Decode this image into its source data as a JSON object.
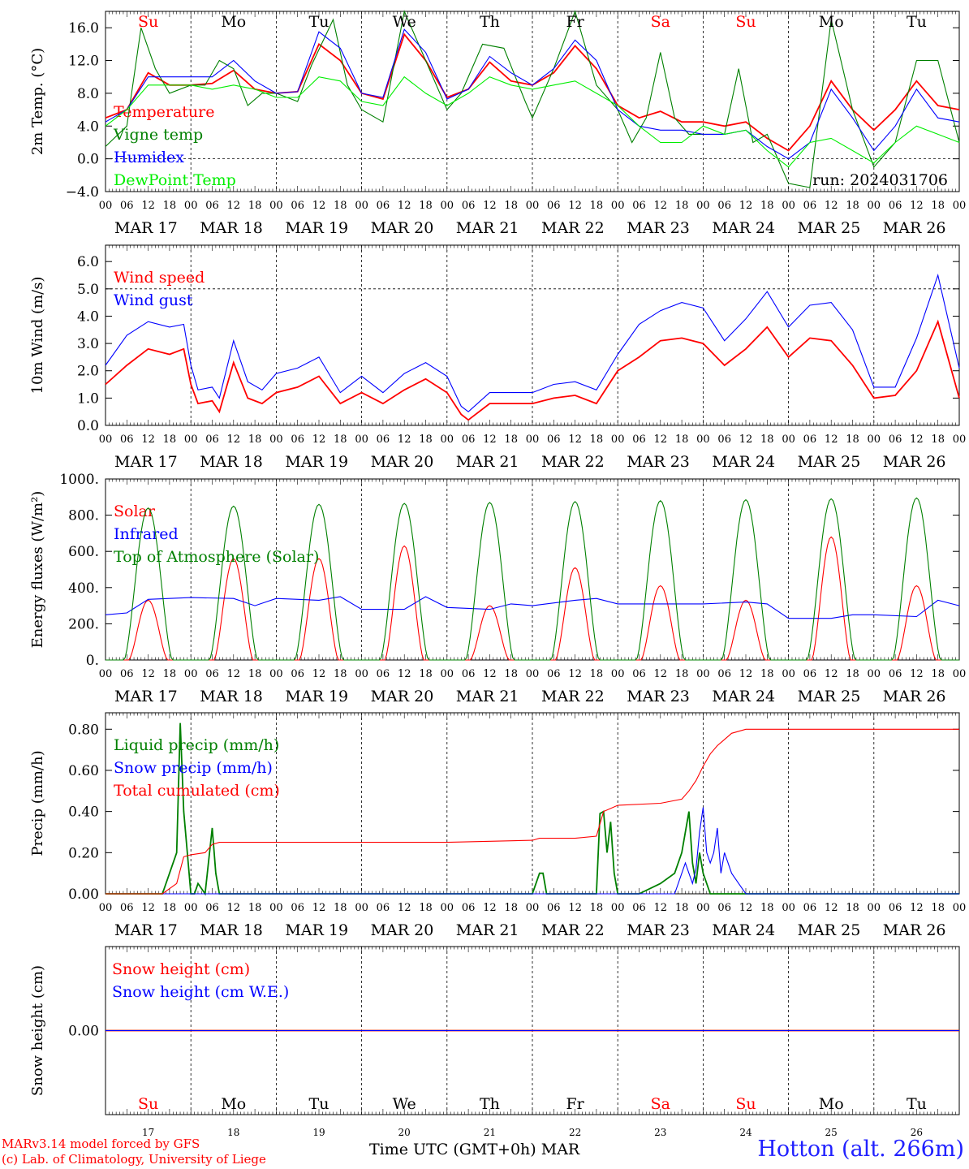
{
  "page": {
    "credit_line1": "MARv3.14 model forced by GFS",
    "credit_line2": "(c) Lab. of Climatology, University of Liege",
    "x_axis_title": "Time UTC (GMT+0h)",
    "x_axis_month": "MAR",
    "station": "Hotton (alt. 266m)",
    "run_label": "run: 2024031706"
  },
  "time_axis": {
    "hour_ticks": [
      "00",
      "06",
      "12",
      "18"
    ],
    "end_tick": "00",
    "date_labels": [
      "MAR 17",
      "MAR 18",
      "MAR 19",
      "MAR 20",
      "MAR 21",
      "MAR 22",
      "MAR 23",
      "MAR 24",
      "MAR 25",
      "MAR 26"
    ],
    "day_names": [
      "Su",
      "Mo",
      "Tu",
      "We",
      "Th",
      "Fr",
      "Sa",
      "Su",
      "Mo",
      "Tu"
    ],
    "day_name_colors": [
      "#ff0000",
      "#000000",
      "#000000",
      "#000000",
      "#000000",
      "#000000",
      "#ff0000",
      "#ff0000",
      "#000000",
      "#000000"
    ],
    "bottom_day_numbers": [
      "17",
      "18",
      "19",
      "20",
      "21",
      "22",
      "23",
      "24",
      "25",
      "26"
    ]
  },
  "chart_data": [
    {
      "type": "line",
      "ylabel": "2m Temp. (°C)",
      "ylim": [
        -4,
        18
      ],
      "yticks": [
        -4,
        0,
        4,
        8,
        12,
        16
      ],
      "ytick_labels": [
        "−4.0",
        "0.0",
        "4.0",
        "8.0",
        "12.0",
        "16.0"
      ],
      "hline": 0,
      "x_unit": "hours since MAR 17 00 UTC",
      "series": [
        {
          "name": "Temperature",
          "color": "#ff0000",
          "x": [
            0,
            6,
            12,
            18,
            24,
            30,
            36,
            42,
            48,
            54,
            60,
            66,
            72,
            78,
            84,
            90,
            96,
            102,
            108,
            114,
            120,
            126,
            132,
            138,
            144,
            150,
            156,
            162,
            168,
            174,
            180,
            186,
            192,
            198,
            204,
            210,
            216,
            222,
            228,
            234,
            240
          ],
          "y": [
            5,
            6,
            10.5,
            9,
            9,
            9.2,
            10.8,
            8.5,
            8,
            8.2,
            14,
            12,
            8,
            7.3,
            15.2,
            12,
            7.5,
            8.5,
            11.8,
            9.5,
            9,
            10.5,
            13.8,
            11,
            6.5,
            5,
            5.8,
            4.5,
            4.5,
            4,
            4.5,
            2.5,
            1,
            4,
            9.5,
            6,
            3.5,
            6,
            9.5,
            6.5,
            6
          ]
        },
        {
          "name": "Vigne temp",
          "color": "#008000",
          "x": [
            0,
            6,
            10,
            14,
            18,
            24,
            28,
            32,
            36,
            40,
            44,
            48,
            54,
            58,
            64,
            68,
            72,
            78,
            84,
            90,
            96,
            100,
            106,
            112,
            118,
            120,
            126,
            132,
            138,
            144,
            148,
            152,
            156,
            160,
            164,
            168,
            174,
            178,
            182,
            186,
            192,
            198,
            204,
            210,
            216,
            222,
            228,
            234,
            240
          ],
          "y": [
            1.5,
            4,
            16,
            11,
            8,
            9,
            9,
            12,
            11,
            6.5,
            8,
            8,
            7,
            11.5,
            17,
            9,
            6,
            4.5,
            18,
            12,
            6,
            8,
            14,
            13.5,
            7,
            5,
            11,
            18,
            9,
            6,
            2,
            5,
            13,
            5,
            3,
            3,
            3,
            11,
            2,
            3,
            -3,
            -3.5,
            17,
            6,
            -1,
            2,
            12,
            12,
            2
          ]
        },
        {
          "name": "Humidex",
          "color": "#0000ff",
          "x": [
            0,
            6,
            12,
            18,
            24,
            30,
            36,
            42,
            48,
            54,
            60,
            66,
            72,
            78,
            84,
            90,
            96,
            102,
            108,
            114,
            120,
            126,
            132,
            138,
            144,
            150,
            156,
            162,
            168,
            174,
            180,
            186,
            192,
            198,
            204,
            210,
            216,
            222,
            228,
            234,
            240
          ],
          "y": [
            4.5,
            6,
            10,
            10,
            10,
            10,
            12,
            9.5,
            8,
            8.2,
            15.5,
            13.5,
            8,
            7.5,
            15.8,
            13,
            7.3,
            8.5,
            12.5,
            10.5,
            9,
            11,
            14.5,
            12,
            6,
            4,
            3.5,
            3.5,
            3,
            3,
            3.5,
            1.5,
            0,
            2,
            8.5,
            5,
            1,
            4,
            8.5,
            5,
            4.5
          ]
        },
        {
          "name": "DewPoint Temp",
          "color": "#00ee00",
          "x": [
            0,
            6,
            12,
            18,
            24,
            30,
            36,
            42,
            48,
            54,
            60,
            66,
            72,
            78,
            84,
            90,
            96,
            102,
            108,
            114,
            120,
            126,
            132,
            138,
            144,
            150,
            156,
            162,
            168,
            174,
            180,
            186,
            192,
            198,
            204,
            210,
            216,
            222,
            228,
            234,
            240
          ],
          "y": [
            4,
            6,
            9,
            9,
            9,
            8.5,
            9,
            8.5,
            7.5,
            7.5,
            10,
            9.5,
            7,
            6.5,
            10,
            8,
            6.5,
            8,
            10,
            9,
            8.5,
            9,
            9.5,
            8,
            6.5,
            4,
            2,
            2,
            4,
            3,
            3.5,
            1,
            -1,
            2,
            2.5,
            1,
            -0.5,
            2,
            4,
            3,
            2
          ]
        }
      ]
    },
    {
      "type": "line",
      "ylabel": "10m Wind (m/s)",
      "ylim": [
        0,
        6.6
      ],
      "yticks": [
        0,
        1,
        2,
        3,
        4,
        5,
        6
      ],
      "ytick_labels": [
        "0.0",
        "1.0",
        "2.0",
        "3.0",
        "4.0",
        "5.0",
        "6.0"
      ],
      "hline": 5,
      "x_unit": "hours since MAR 17 00 UTC",
      "series": [
        {
          "name": "Wind speed",
          "color": "#ff0000",
          "x": [
            0,
            6,
            12,
            18,
            22,
            24,
            26,
            30,
            32,
            36,
            40,
            44,
            48,
            54,
            60,
            66,
            72,
            78,
            84,
            90,
            96,
            100,
            102,
            108,
            114,
            120,
            126,
            132,
            138,
            144,
            150,
            156,
            162,
            168,
            174,
            180,
            186,
            192,
            198,
            204,
            210,
            216,
            222,
            228,
            234,
            240
          ],
          "y": [
            1.5,
            2.2,
            2.8,
            2.6,
            2.8,
            1.5,
            0.8,
            0.9,
            0.5,
            2.3,
            1,
            0.8,
            1.2,
            1.4,
            1.8,
            0.8,
            1.2,
            0.8,
            1.3,
            1.7,
            1.2,
            0.4,
            0.2,
            0.8,
            0.8,
            0.8,
            1,
            1.1,
            0.8,
            2,
            2.5,
            3.1,
            3.2,
            3,
            2.2,
            2.8,
            3.6,
            2.5,
            3.2,
            3.1,
            2.2,
            1,
            1.1,
            2,
            3.8,
            1
          ]
        },
        {
          "name": "Wind gust",
          "color": "#0000ff",
          "x": [
            0,
            6,
            12,
            18,
            22,
            24,
            26,
            30,
            32,
            36,
            40,
            44,
            48,
            54,
            60,
            66,
            72,
            78,
            84,
            90,
            96,
            100,
            102,
            108,
            114,
            120,
            126,
            132,
            138,
            144,
            150,
            156,
            162,
            168,
            174,
            180,
            186,
            192,
            198,
            204,
            210,
            216,
            222,
            228,
            234,
            240
          ],
          "y": [
            2.2,
            3.3,
            3.8,
            3.6,
            3.7,
            2.2,
            1.3,
            1.4,
            1,
            3.1,
            1.6,
            1.3,
            1.9,
            2.1,
            2.5,
            1.2,
            1.8,
            1.2,
            1.9,
            2.3,
            1.8,
            0.7,
            0.5,
            1.2,
            1.2,
            1.2,
            1.5,
            1.6,
            1.3,
            2.6,
            3.7,
            4.2,
            4.5,
            4.3,
            3.1,
            3.9,
            4.9,
            3.6,
            4.4,
            4.5,
            3.5,
            1.4,
            1.4,
            3.2,
            5.5,
            2.1
          ]
        }
      ]
    },
    {
      "type": "line",
      "ylabel": "Energy fluxes (W/m²)",
      "ylim": [
        0,
        1000
      ],
      "yticks": [
        0,
        200,
        400,
        600,
        800,
        1000
      ],
      "ytick_labels": [
        "0.",
        "200.",
        "400.",
        "600.",
        "800.",
        "1000."
      ],
      "x_unit": "hours since MAR 17 00 UTC",
      "series": [
        {
          "name": "Solar",
          "color": "#ff0000",
          "day_peaks": [
            330,
            560,
            560,
            630,
            300,
            510,
            410,
            330,
            680,
            410
          ]
        },
        {
          "name": "Infrared",
          "color": "#0000ff",
          "x": [
            0,
            6,
            12,
            24,
            36,
            42,
            48,
            60,
            66,
            72,
            84,
            90,
            96,
            108,
            114,
            120,
            132,
            138,
            144,
            156,
            162,
            168,
            180,
            186,
            192,
            204,
            210,
            216,
            228,
            234,
            240
          ],
          "y": [
            250,
            260,
            335,
            345,
            340,
            300,
            340,
            330,
            350,
            280,
            280,
            350,
            290,
            280,
            310,
            300,
            330,
            340,
            310,
            310,
            310,
            310,
            320,
            310,
            230,
            230,
            250,
            250,
            240,
            330,
            300
          ]
        },
        {
          "name": "Top of Atmosphere (Solar)",
          "color": "#008000",
          "day_peaks": [
            840,
            850,
            860,
            865,
            870,
            875,
            880,
            885,
            890,
            895
          ]
        }
      ]
    },
    {
      "type": "line",
      "ylabel": "Precip (mm/h)",
      "ylim": [
        0,
        0.88
      ],
      "yticks": [
        0,
        0.2,
        0.4,
        0.6,
        0.8
      ],
      "ytick_labels": [
        "0.00",
        "0.20",
        "0.40",
        "0.60",
        "0.80"
      ],
      "x_unit": "hours since MAR 17 00 UTC",
      "series": [
        {
          "name": "Liquid precip (mm/h)",
          "color": "#008000",
          "x": [
            0,
            16,
            18,
            20,
            21,
            22,
            23,
            24,
            25,
            26,
            28,
            30,
            31,
            32,
            34,
            36,
            120,
            122,
            123,
            124,
            126,
            138,
            139,
            140,
            141,
            142,
            143,
            144,
            146,
            148,
            150,
            156,
            160,
            162,
            164,
            165,
            166,
            167,
            168,
            170,
            172,
            174,
            180,
            240
          ],
          "y": [
            0,
            0,
            0.1,
            0.2,
            0.83,
            0.4,
            0.2,
            0,
            0,
            0.05,
            0,
            0.32,
            0.1,
            0,
            0,
            0,
            0,
            0.1,
            0.1,
            0,
            0,
            0,
            0.39,
            0.4,
            0.2,
            0.35,
            0.1,
            0,
            0,
            0,
            0,
            0.05,
            0.1,
            0.2,
            0.4,
            0.15,
            0.05,
            0.2,
            0.1,
            0,
            0,
            0,
            0,
            0
          ]
        },
        {
          "name": "Snow precip (mm/h)",
          "color": "#0000ff",
          "x": [
            0,
            160,
            162,
            163,
            164,
            165,
            166,
            167,
            168,
            169,
            170,
            171,
            172,
            173,
            174,
            176,
            178,
            180,
            240
          ],
          "y": [
            0,
            0,
            0.1,
            0.15,
            0.1,
            0.05,
            0.12,
            0.3,
            0.42,
            0.2,
            0.15,
            0.2,
            0.32,
            0.1,
            0.2,
            0.1,
            0.05,
            0,
            0
          ]
        },
        {
          "name": "Total cumulated (cm)",
          "color": "#ff0000",
          "x": [
            0,
            16,
            20,
            22,
            24,
            28,
            30,
            32,
            48,
            96,
            120,
            122,
            132,
            138,
            140,
            144,
            156,
            162,
            164,
            166,
            168,
            170,
            172,
            174,
            176,
            180,
            240
          ],
          "y": [
            0,
            0,
            0.05,
            0.18,
            0.19,
            0.2,
            0.24,
            0.25,
            0.25,
            0.25,
            0.26,
            0.27,
            0.27,
            0.28,
            0.4,
            0.43,
            0.44,
            0.46,
            0.5,
            0.55,
            0.62,
            0.68,
            0.72,
            0.75,
            0.78,
            0.8,
            0.8
          ]
        }
      ]
    },
    {
      "type": "line",
      "ylabel": "Snow height (cm)",
      "ylim": [
        -1,
        1
      ],
      "yticks": [
        0
      ],
      "ytick_labels": [
        "0.00"
      ],
      "x_unit": "hours since MAR 17 00 UTC",
      "series": [
        {
          "name": "Snow height (cm)",
          "color": "#ff0000",
          "x": [
            0,
            240
          ],
          "y": [
            0,
            0
          ]
        },
        {
          "name": "Snow height (cm W.E.)",
          "color": "#0000ff",
          "x": [
            0,
            240
          ],
          "y": [
            0,
            0
          ]
        }
      ]
    }
  ]
}
